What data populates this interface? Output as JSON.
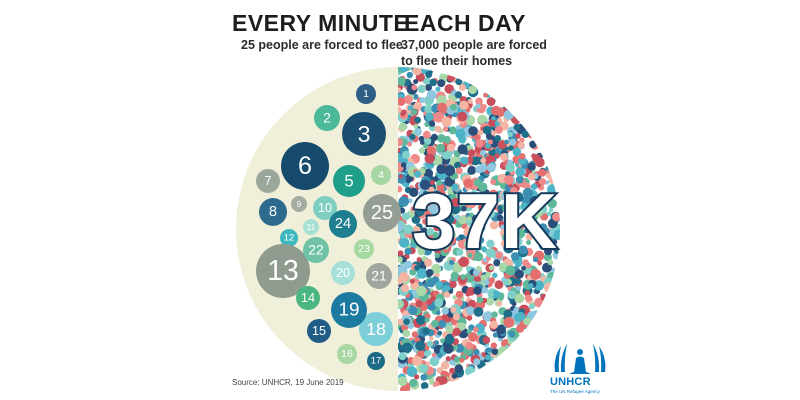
{
  "left": {
    "heading": "EVERY MINUTE",
    "subheading": "25 people are forced to flee",
    "bubbles": [
      {
        "label": "1",
        "color": "#2e5e86"
      },
      {
        "label": "2",
        "color": "#4cb89a"
      },
      {
        "label": "3",
        "color": "#1b4f72"
      },
      {
        "label": "4",
        "color": "#a6d6a4"
      },
      {
        "label": "5",
        "color": "#1f9e89"
      },
      {
        "label": "6",
        "color": "#164a6c"
      },
      {
        "label": "7",
        "color": "#9aa79a"
      },
      {
        "label": "8",
        "color": "#2d6a8e"
      },
      {
        "label": "9",
        "color": "#a3aba3"
      },
      {
        "label": "10",
        "color": "#7fcfc0"
      },
      {
        "label": "11",
        "color": "#a8e0d6"
      },
      {
        "label": "12",
        "color": "#3fb7c1"
      },
      {
        "label": "13",
        "color": "#8f9b8f"
      },
      {
        "label": "14",
        "color": "#49b77f"
      },
      {
        "label": "15",
        "color": "#215c86"
      },
      {
        "label": "16",
        "color": "#a8d8a1"
      },
      {
        "label": "17",
        "color": "#1d6a87"
      },
      {
        "label": "18",
        "color": "#7ccfd8"
      },
      {
        "label": "19",
        "color": "#1c7aa0"
      },
      {
        "label": "20",
        "color": "#a7e0d8"
      },
      {
        "label": "21",
        "color": "#9ea69e"
      },
      {
        "label": "22",
        "color": "#6fc2a6"
      },
      {
        "label": "23",
        "color": "#a4d9a0"
      },
      {
        "label": "24",
        "color": "#1e7f91"
      },
      {
        "label": "25",
        "color": "#959e95"
      }
    ]
  },
  "right": {
    "heading": "EACH DAY",
    "subheading_line1": "37,000 people are forced",
    "subheading_line2": "to flee their homes",
    "big_figure": "37K"
  },
  "source": "Source: UNHCR, 19 June 2019",
  "logo": {
    "name": "UNHCR",
    "tagline": "The UN Refugee Agency",
    "color": "#0072bc"
  },
  "colors": {
    "half_circle_bg": "#f0efd9",
    "dot_palette": [
      "#e36f6f",
      "#f08a8a",
      "#4db3c7",
      "#7fd0c9",
      "#1f6f8b",
      "#2a4f7a",
      "#5fb89a",
      "#a8d8a8",
      "#f5b5a5",
      "#8fc7e0",
      "#3c8fb3",
      "#c94f5c"
    ]
  }
}
